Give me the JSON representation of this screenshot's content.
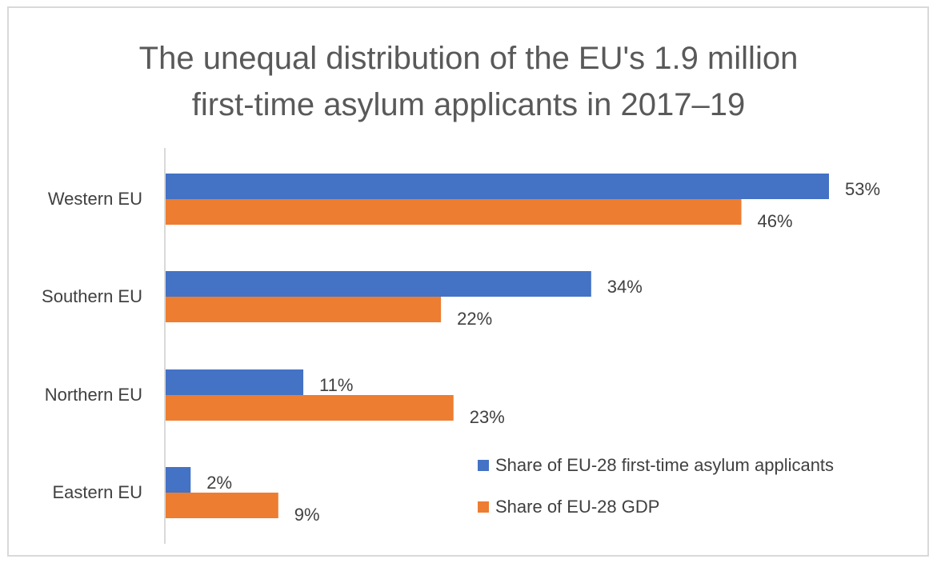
{
  "title_lines": [
    "The unequal distribution of the EU's 1.9 million",
    "first-time asylum applicants in 2017–19"
  ],
  "chart_data": {
    "type": "bar",
    "orientation": "horizontal",
    "categories": [
      "Western EU",
      "Southern EU",
      "Northern EU",
      "Eastern EU"
    ],
    "series": [
      {
        "name": "Share of EU-28 first-time asylum applicants",
        "values": [
          53,
          34,
          11,
          2
        ],
        "color": "#4472c4"
      },
      {
        "name": "Share of EU-28 GDP",
        "values": [
          46,
          22,
          23,
          9
        ],
        "color": "#ed7d31"
      }
    ],
    "value_suffix": "%",
    "xlim": [
      0,
      53
    ],
    "legend_position": "bottom-right",
    "grid": false
  }
}
